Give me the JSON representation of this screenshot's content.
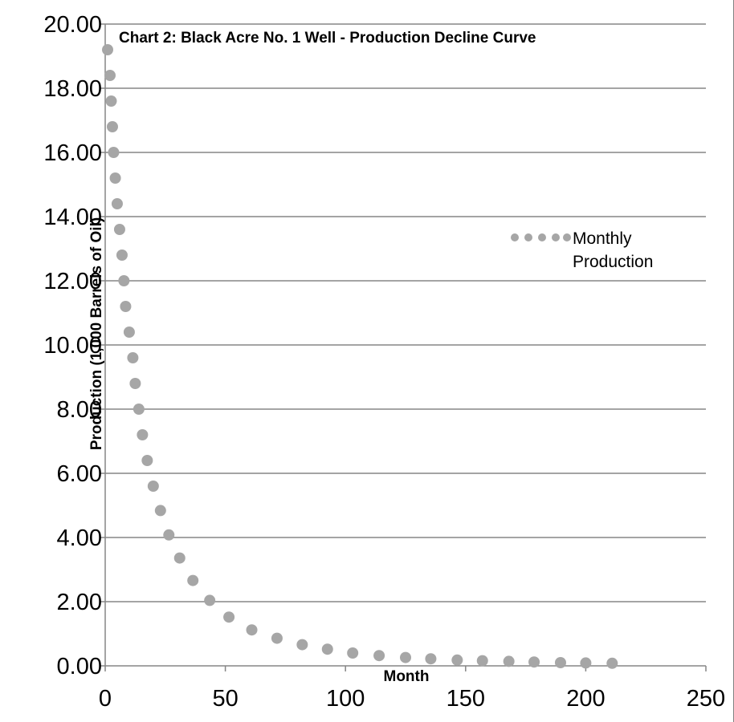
{
  "chart_data": {
    "type": "scatter",
    "title": "Chart 2:  Black Acre No. 1 Well - Production Decline Curve",
    "xlabel": "Month",
    "ylabel": "Production (1,000 Barrels of Oil)",
    "xlim": [
      0,
      250
    ],
    "ylim": [
      0,
      20
    ],
    "xticks": [
      "0",
      "50",
      "100",
      "150",
      "200",
      "250"
    ],
    "yticks": [
      "0.00",
      "2.00",
      "4.00",
      "6.00",
      "8.00",
      "10.00",
      "12.00",
      "14.00",
      "16.00",
      "18.00",
      "20.00"
    ],
    "grid": "horizontal",
    "legend_position": "right",
    "series": [
      {
        "name": "Monthly Production",
        "color": "#a6a6a6",
        "x": [
          1,
          2,
          2.5,
          3,
          3.5,
          4.2,
          5,
          6,
          7,
          7.8,
          8.5,
          10,
          11.5,
          12.5,
          14,
          15.5,
          17.5,
          20,
          23,
          26.5,
          31,
          36.5,
          43.5,
          51.5,
          61,
          71.5,
          82,
          92.5,
          103,
          114,
          125,
          135.5,
          146.5,
          157,
          168,
          178.5,
          189.5,
          200,
          211
        ],
        "y": [
          19.2,
          18.4,
          17.6,
          16.8,
          16.0,
          15.2,
          14.4,
          13.6,
          12.8,
          12.0,
          11.2,
          10.4,
          9.6,
          8.8,
          8.0,
          7.2,
          6.4,
          5.6,
          4.84,
          4.08,
          3.36,
          2.66,
          2.04,
          1.52,
          1.12,
          0.86,
          0.66,
          0.52,
          0.4,
          0.32,
          0.26,
          0.22,
          0.18,
          0.16,
          0.14,
          0.12,
          0.1,
          0.09,
          0.08
        ]
      }
    ]
  }
}
